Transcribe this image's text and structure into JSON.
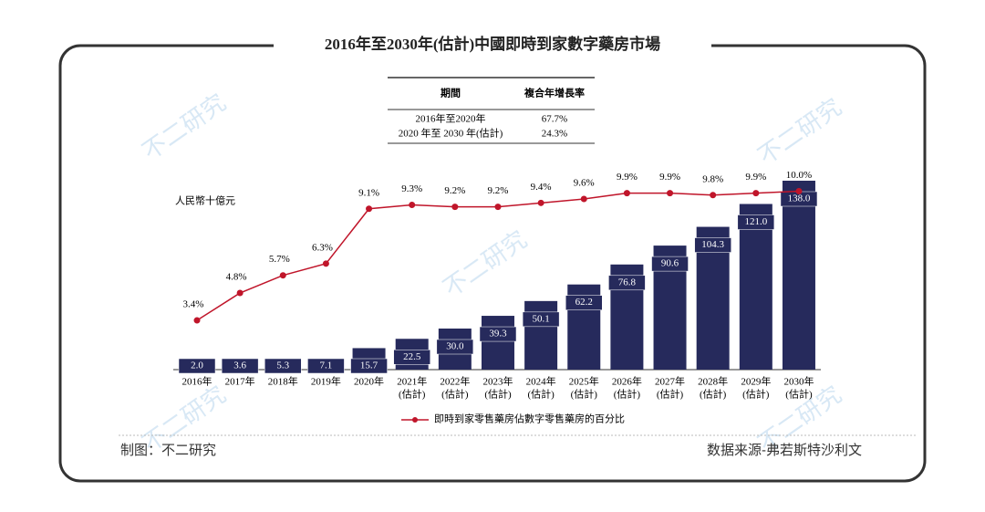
{
  "chart_data": {
    "type": "bar_line",
    "title": "2016年至2030年(估計)中國即時到家數字藥房市場",
    "table": {
      "header": [
        "期間",
        "複合年增長率"
      ],
      "rows": [
        [
          "2016年至2020年",
          "67.7%"
        ],
        [
          "2020 年至 2030 年(估計)",
          "24.3%"
        ]
      ]
    },
    "y_label": "人民幣十億元",
    "categories": [
      "2016年",
      "2017年",
      "2018年",
      "2019年",
      "2020年",
      "2021年",
      "2022年",
      "2023年",
      "2024年",
      "2025年",
      "2026年",
      "2027年",
      "2028年",
      "2029年",
      "2030年"
    ],
    "category_notes": [
      null,
      null,
      null,
      null,
      null,
      "(估計)",
      "(估計)",
      "(估計)",
      "(估計)",
      "(估計)",
      "(估計)",
      "(估計)",
      "(估計)",
      "(估計)",
      "(估計)"
    ],
    "series": [
      {
        "type": "bar",
        "color": "#262a5c",
        "values": [
          2.0,
          3.6,
          5.3,
          7.1,
          15.7,
          22.5,
          30.0,
          39.3,
          50.1,
          62.2,
          76.8,
          90.6,
          104.3,
          121.0,
          138.0
        ],
        "value_labels": [
          "2.0",
          "3.6",
          "5.3",
          "7.1",
          "15.7",
          "22.5",
          "30.0",
          "39.3",
          "50.1",
          "62.2",
          "76.8",
          "90.6",
          "104.3",
          "121.0",
          "138.0"
        ]
      },
      {
        "type": "line",
        "axis": "y2",
        "name": "即時到家零售藥房佔數字零售藥房的百分比",
        "color": "#c0152a",
        "values": [
          3.4,
          4.8,
          5.7,
          6.3,
          9.1,
          9.3,
          9.2,
          9.2,
          9.4,
          9.6,
          9.9,
          9.9,
          9.8,
          9.9,
          10.0
        ],
        "value_labels": [
          "3.4%",
          "4.8%",
          "5.7%",
          "6.3%",
          "9.1%",
          "9.3%",
          "9.2%",
          "9.2%",
          "9.4%",
          "9.6%",
          "9.9%",
          "9.9%",
          "9.8%",
          "9.9%",
          "10.0%"
        ]
      }
    ],
    "ylim": [
      0,
      140
    ],
    "y2lim": [
      0,
      11
    ],
    "footer_left": "制图：不二研究",
    "footer_right": "数据来源-弗若斯特沙利文",
    "watermark": "不二研究"
  }
}
